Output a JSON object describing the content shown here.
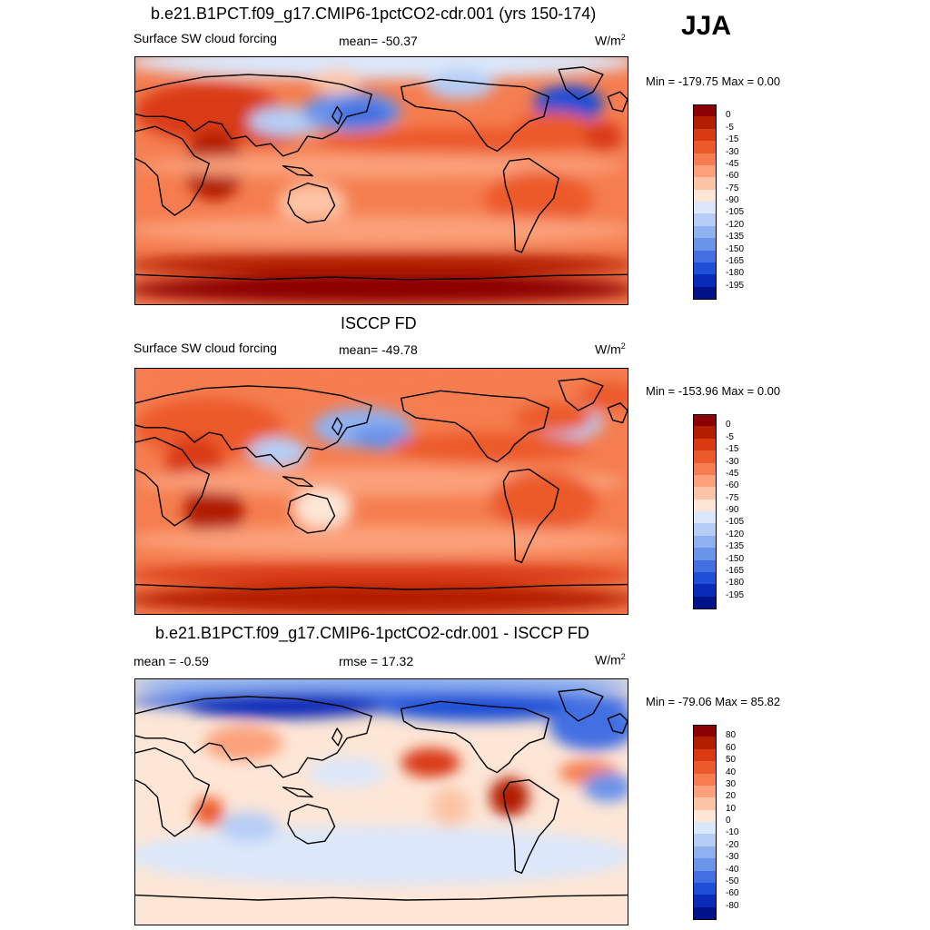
{
  "season": "JJA",
  "panels": [
    {
      "title": "b.e21.B1PCT.f09_g17.CMIP6-1pctCO2-cdr.001 (yrs 150-174)",
      "left_label": "Surface SW cloud forcing",
      "center_label": "mean= -50.37",
      "units_base": "W/m",
      "units_exp": "2",
      "minmax": "Min = -179.75 Max =    0.00"
    },
    {
      "title": "ISCCP FD",
      "left_label": "Surface SW cloud forcing",
      "center_label": "mean= -49.78",
      "units_base": "W/m",
      "units_exp": "2",
      "minmax": "Min = -153.96 Max =    0.00"
    },
    {
      "title": "b.e21.B1PCT.f09_g17.CMIP6-1pctCO2-cdr.001 - ISCCP FD",
      "left_label": "mean =  -0.59",
      "center_label": "rmse =  17.32",
      "units_base": "W/m",
      "units_exp": "2",
      "minmax": "Min = -79.06 Max =  85.82"
    }
  ],
  "chart_data": [
    {
      "type": "heatmap",
      "title": "b.e21.B1PCT.f09_g17.CMIP6-1pctCO2-cdr.001 (yrs 150-174)",
      "variable": "Surface SW cloud forcing",
      "units": "W/m2",
      "mean": -50.37,
      "min": -179.75,
      "max": 0.0,
      "colorbar_levels": [
        "0",
        "-5",
        "-15",
        "-30",
        "-45",
        "-60",
        "-75",
        "-90",
        "-105",
        "-120",
        "-135",
        "-150",
        "-165",
        "-180",
        "-195"
      ],
      "colorbar_colors": [
        "#8b0000",
        "#b21e00",
        "#d93a12",
        "#ec5a2b",
        "#f57d4f",
        "#fba07a",
        "#fcc4a6",
        "#fde6d6",
        "#dbe7fa",
        "#b6cdf5",
        "#8fb1f0",
        "#6a93ea",
        "#4270e2",
        "#1f4fd6",
        "#0a2bb7",
        "#00118a"
      ]
    },
    {
      "type": "heatmap",
      "title": "ISCCP FD",
      "variable": "Surface SW cloud forcing",
      "units": "W/m2",
      "mean": -49.78,
      "min": -153.96,
      "max": 0.0,
      "colorbar_levels": [
        "0",
        "-5",
        "-15",
        "-30",
        "-45",
        "-60",
        "-75",
        "-90",
        "-105",
        "-120",
        "-135",
        "-150",
        "-165",
        "-180",
        "-195"
      ],
      "colorbar_colors": [
        "#8b0000",
        "#b21e00",
        "#d93a12",
        "#ec5a2b",
        "#f57d4f",
        "#fba07a",
        "#fcc4a6",
        "#fde6d6",
        "#dbe7fa",
        "#b6cdf5",
        "#8fb1f0",
        "#6a93ea",
        "#4270e2",
        "#1f4fd6",
        "#0a2bb7",
        "#00118a"
      ]
    },
    {
      "type": "heatmap",
      "title": "b.e21.B1PCT.f09_g17.CMIP6-1pctCO2-cdr.001 - ISCCP FD",
      "units": "W/m2",
      "mean": -0.59,
      "rmse": 17.32,
      "min": -79.06,
      "max": 85.82,
      "colorbar_levels": [
        "80",
        "60",
        "50",
        "40",
        "30",
        "20",
        "10",
        "0",
        "-10",
        "-20",
        "-30",
        "-40",
        "-50",
        "-60",
        "-80"
      ],
      "colorbar_colors": [
        "#8b0000",
        "#b21e00",
        "#d93a12",
        "#ec5a2b",
        "#f57d4f",
        "#fba07a",
        "#fcc4a6",
        "#fde6d6",
        "#dbe7fa",
        "#b6cdf5",
        "#8fb1f0",
        "#6a93ea",
        "#4270e2",
        "#1f4fd6",
        "#0a2bb7",
        "#00118a"
      ]
    }
  ]
}
